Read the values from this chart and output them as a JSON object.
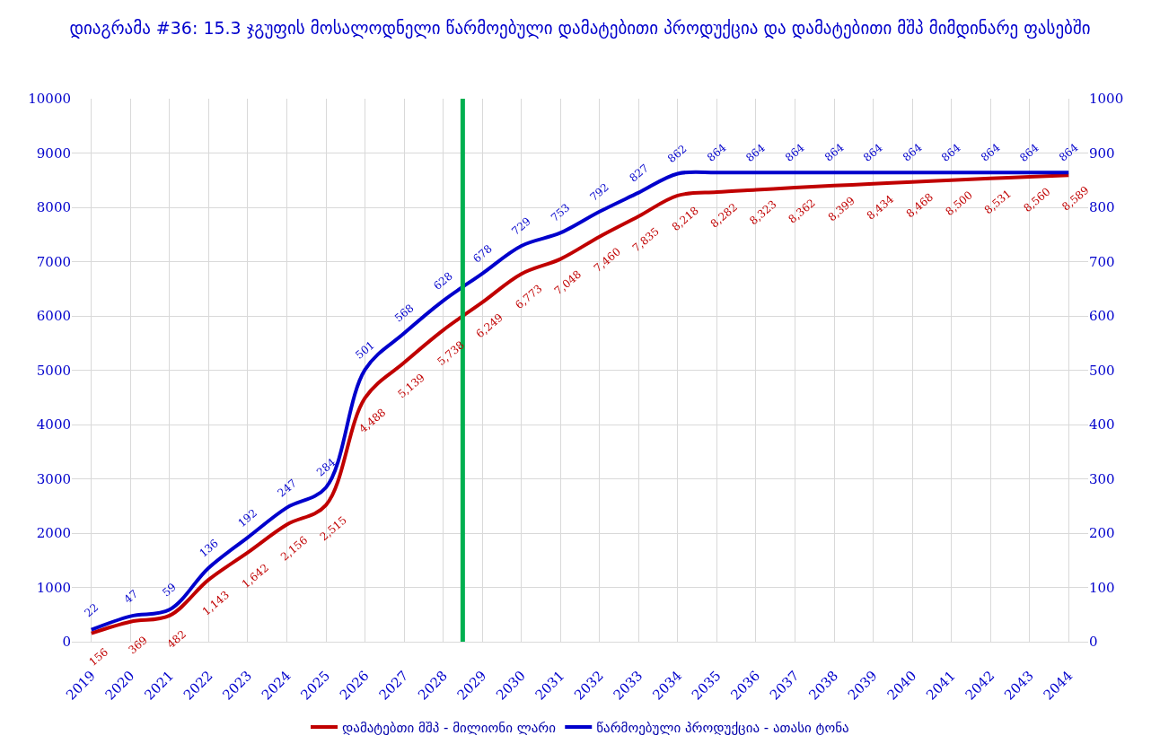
{
  "chart_data": {
    "type": "line",
    "title": "დიაგრამა #36: 15.3 ჯგუფის მოსალოდნელი წარმოებული დამატებითი პროდუქცია და დამატებითი მშპ მიმდინარე ფასებში",
    "x": [
      2019,
      2020,
      2021,
      2022,
      2023,
      2024,
      2025,
      2026,
      2027,
      2028,
      2029,
      2030,
      2031,
      2032,
      2033,
      2034,
      2035,
      2036,
      2037,
      2038,
      2039,
      2040,
      2041,
      2042,
      2043,
      2044
    ],
    "xlim": [
      2018.5,
      2044.5
    ],
    "xticks": [
      2019,
      2020,
      2021,
      2022,
      2023,
      2024,
      2025,
      2026,
      2027,
      2028,
      2029,
      2030,
      2031,
      2032,
      2033,
      2034,
      2035,
      2036,
      2037,
      2038,
      2039,
      2040,
      2041,
      2042,
      2043,
      2044
    ],
    "ylim": [
      0,
      10000
    ],
    "yticks": [
      0,
      1000,
      2000,
      3000,
      4000,
      5000,
      6000,
      7000,
      8000,
      9000,
      10000
    ],
    "y2lim": [
      0,
      1000
    ],
    "y2ticks": [
      0,
      100,
      200,
      300,
      400,
      500,
      600,
      700,
      800,
      900,
      1000
    ],
    "series": [
      {
        "name": "დამატებთი მშპ - მილიონი ლარი",
        "color": "#c00000",
        "values": [
          156,
          369,
          482,
          1143,
          1642,
          2156,
          2515,
          4488,
          5139,
          5738,
          6249,
          6773,
          7048,
          7460,
          7835,
          8218,
          8282,
          8323,
          8362,
          8399,
          8434,
          8468,
          8500,
          8531,
          8560,
          8589
        ],
        "value_labels": [
          "156",
          "369",
          "482",
          "1,143",
          "1,642",
          "2,156",
          "2,515",
          "4,488",
          "5,139",
          "5,738",
          "6,249",
          "6,773",
          "7,048",
          "7,460",
          "7,835",
          "8,218",
          "8,282",
          "8,323",
          "8,362",
          "8,399",
          "8,434",
          "8,468",
          "8,500",
          "8,531",
          "8,560",
          "8,589"
        ]
      },
      {
        "name": "წარმოებული პროდუქცია - ათასი ტონა",
        "color": "#0000cc",
        "axis": "y2",
        "values": [
          22,
          47,
          59,
          136,
          192,
          247,
          284,
          501,
          568,
          628,
          678,
          729,
          753,
          792,
          827,
          862,
          864,
          864,
          864,
          864,
          864,
          864,
          864,
          864,
          864,
          864
        ],
        "value_labels": [
          "22",
          "47",
          "59",
          "136",
          "192",
          "247",
          "284",
          "501",
          "568",
          "628",
          "678",
          "729",
          "753",
          "792",
          "827",
          "862",
          "864",
          "864",
          "864",
          "864",
          "864",
          "864",
          "864",
          "864",
          "864",
          "864"
        ]
      }
    ],
    "ref_lines": [
      {
        "axis": "x",
        "value": 2028.5,
        "color": "#00b050"
      }
    ],
    "grid": true,
    "legend": "bottom"
  }
}
